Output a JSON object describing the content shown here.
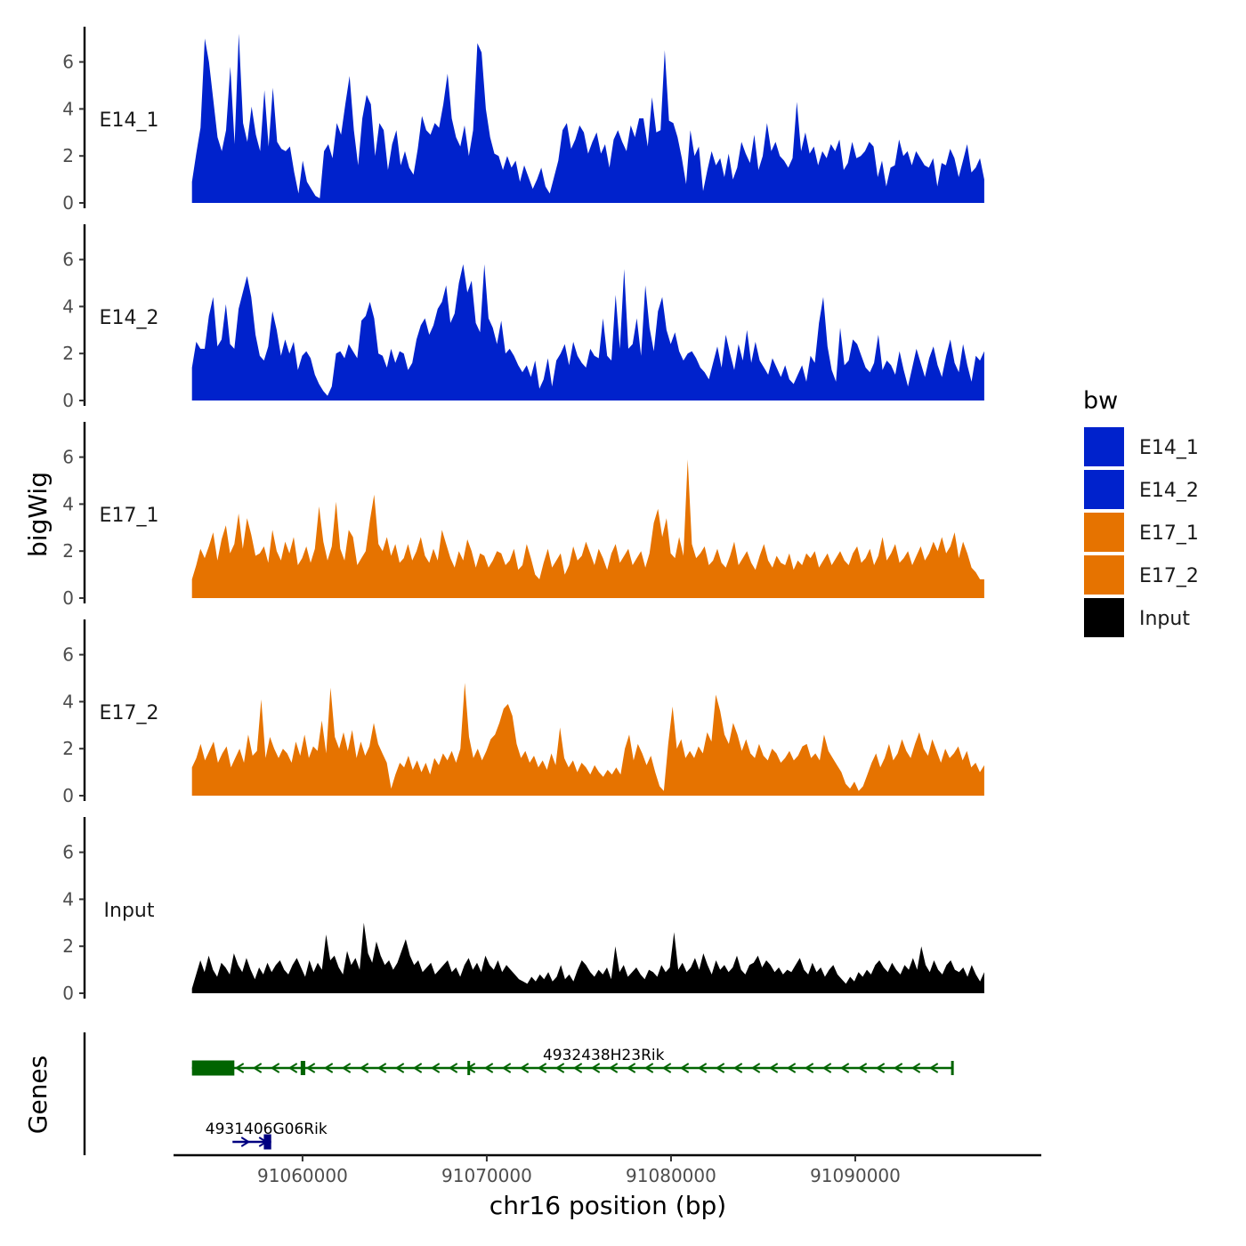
{
  "chart_data": {
    "type": "area",
    "ylabel": "bigWig",
    "genes_label": "Genes",
    "xlabel": "chr16 position (bp)",
    "xlim": [
      91053000,
      91100000
    ],
    "ylim": [
      0,
      7.5
    ],
    "y_ticks": [
      "0",
      "2",
      "4",
      "6"
    ],
    "x_ticks": [
      {
        "value": 91060000,
        "label": "91060000"
      },
      {
        "value": 91070000,
        "label": "91070000"
      },
      {
        "value": 91080000,
        "label": "91080000"
      },
      {
        "value": 91090000,
        "label": "91090000"
      }
    ],
    "series": [
      {
        "name": "E14_1",
        "color": "#0022cc",
        "x_start": 91054000,
        "x_end": 91097000,
        "values": [
          0.9,
          2.1,
          3.2,
          7.0,
          6.0,
          4.4,
          2.8,
          2.2,
          3.1,
          5.8,
          2.5,
          7.2,
          3.4,
          2.6,
          4.1,
          2.9,
          2.2,
          4.8,
          2.4,
          4.9,
          2.6,
          2.3,
          2.2,
          2.4,
          1.3,
          0.4,
          1.8,
          0.9,
          0.6,
          0.3,
          0.2,
          2.2,
          2.5,
          1.9,
          3.4,
          2.9,
          4.2,
          5.4,
          3.1,
          1.6,
          3.6,
          4.6,
          4.2,
          2.0,
          3.4,
          3.1,
          1.4,
          2.5,
          3.1,
          1.6,
          2.2,
          1.5,
          1.2,
          2.3,
          3.7,
          3.1,
          2.9,
          3.4,
          3.2,
          4.2,
          5.5,
          3.6,
          2.8,
          2.4,
          3.3,
          2.0,
          3.1,
          6.8,
          6.4,
          4.0,
          2.8,
          2.1,
          2.0,
          1.4,
          2.0,
          1.5,
          1.8,
          0.9,
          1.6,
          1.1,
          0.6,
          1.0,
          1.5,
          0.7,
          0.4,
          1.1,
          1.8,
          3.1,
          3.4,
          2.3,
          2.7,
          3.3,
          3.0,
          2.1,
          2.6,
          3.0,
          2.1,
          2.5,
          1.5,
          2.7,
          3.1,
          2.6,
          2.2,
          3.3,
          2.8,
          3.6,
          3.6,
          2.4,
          4.5,
          3.0,
          3.1,
          6.5,
          3.5,
          3.4,
          2.8,
          1.9,
          0.8,
          3.1,
          2.0,
          2.4,
          0.5,
          1.4,
          2.2,
          1.6,
          1.9,
          1.1,
          2.1,
          1.0,
          1.5,
          2.6,
          2.1,
          1.7,
          2.9,
          1.4,
          2.0,
          3.4,
          2.2,
          2.6,
          2.0,
          1.8,
          1.5,
          1.9,
          4.3,
          2.2,
          3.0,
          2.1,
          2.4,
          1.6,
          2.2,
          1.9,
          2.5,
          2.2,
          2.7,
          1.4,
          1.7,
          2.6,
          1.9,
          2.0,
          2.2,
          2.6,
          2.4,
          1.1,
          1.8,
          0.7,
          1.5,
          1.6,
          2.7,
          2.0,
          2.2,
          1.6,
          2.2,
          1.9,
          1.6,
          1.5,
          1.9,
          0.7,
          1.7,
          1.6,
          2.3,
          1.9,
          1.1,
          1.8,
          2.5,
          1.3,
          1.5,
          1.9,
          1.0
        ]
      },
      {
        "name": "E14_2",
        "color": "#0022cc",
        "x_start": 91054000,
        "x_end": 91097000,
        "values": [
          1.4,
          2.5,
          2.2,
          2.2,
          3.6,
          4.4,
          2.3,
          2.6,
          4.1,
          2.4,
          2.2,
          3.9,
          4.6,
          5.3,
          4.4,
          2.8,
          1.9,
          1.7,
          2.3,
          3.8,
          3.0,
          1.9,
          2.6,
          2.0,
          2.5,
          1.3,
          1.9,
          2.1,
          1.8,
          1.1,
          0.7,
          0.4,
          0.2,
          0.6,
          2.0,
          2.1,
          1.8,
          2.4,
          2.1,
          1.8,
          3.4,
          3.6,
          4.2,
          3.5,
          2.0,
          1.9,
          1.4,
          2.2,
          1.6,
          2.1,
          2.0,
          1.3,
          1.6,
          2.6,
          3.2,
          3.5,
          2.8,
          3.2,
          3.9,
          4.2,
          4.9,
          3.3,
          3.7,
          5.0,
          5.8,
          4.6,
          5.1,
          3.3,
          2.9,
          5.8,
          3.5,
          3.1,
          2.4,
          3.4,
          2.0,
          2.2,
          1.9,
          1.5,
          1.2,
          1.5,
          1.0,
          1.7,
          0.5,
          0.9,
          1.8,
          0.6,
          1.7,
          2.0,
          2.4,
          1.5,
          2.5,
          1.9,
          1.6,
          1.4,
          2.2,
          1.9,
          1.8,
          3.5,
          1.9,
          1.7,
          4.5,
          2.2,
          5.6,
          2.2,
          2.4,
          3.5,
          1.9,
          4.9,
          3.1,
          2.1,
          3.8,
          4.4,
          3.0,
          2.4,
          2.9,
          2.1,
          1.7,
          2.0,
          2.1,
          1.8,
          1.4,
          1.2,
          0.9,
          1.6,
          2.3,
          1.4,
          2.8,
          2.0,
          1.3,
          2.4,
          1.7,
          3.0,
          1.6,
          2.5,
          1.7,
          1.4,
          1.1,
          1.8,
          1.4,
          1.0,
          1.5,
          0.9,
          0.7,
          1.1,
          1.5,
          0.8,
          1.9,
          1.6,
          3.3,
          4.4,
          2.3,
          1.3,
          0.8,
          3.1,
          1.5,
          1.7,
          2.6,
          2.4,
          1.9,
          1.4,
          1.2,
          1.6,
          2.8,
          1.3,
          1.7,
          1.5,
          1.1,
          2.1,
          1.3,
          0.6,
          1.4,
          2.2,
          1.6,
          1.0,
          1.8,
          2.3,
          1.5,
          1.0,
          1.9,
          2.6,
          1.6,
          1.2,
          2.4,
          1.5,
          0.8,
          1.9,
          1.7,
          2.1
        ]
      },
      {
        "name": "E17_1",
        "color": "#e67300",
        "x_start": 91054000,
        "x_end": 91097000,
        "values": [
          0.8,
          1.4,
          2.1,
          1.7,
          2.2,
          2.8,
          1.6,
          2.5,
          3.1,
          1.9,
          2.3,
          3.6,
          2.1,
          3.4,
          2.7,
          1.8,
          1.9,
          2.2,
          1.5,
          2.9,
          2.0,
          1.6,
          2.4,
          1.9,
          2.6,
          1.4,
          1.7,
          2.2,
          1.5,
          2.1,
          3.9,
          2.4,
          1.6,
          2.2,
          4.1,
          2.1,
          1.6,
          2.9,
          2.6,
          1.4,
          1.7,
          2.0,
          3.3,
          4.4,
          2.3,
          2.0,
          2.6,
          1.8,
          2.3,
          1.5,
          1.7,
          2.3,
          1.6,
          2.0,
          2.6,
          1.8,
          1.5,
          2.1,
          1.6,
          2.9,
          2.3,
          1.7,
          1.3,
          2.0,
          1.6,
          2.5,
          2.0,
          1.3,
          1.9,
          1.8,
          1.3,
          1.6,
          2.0,
          1.9,
          1.4,
          1.6,
          2.1,
          1.2,
          1.4,
          2.3,
          1.7,
          1.0,
          0.8,
          1.5,
          2.1,
          1.3,
          1.6,
          1.9,
          1.0,
          1.4,
          2.2,
          1.6,
          1.8,
          2.4,
          1.9,
          1.4,
          2.1,
          1.7,
          1.2,
          1.9,
          2.3,
          1.5,
          1.8,
          2.1,
          1.4,
          1.7,
          2.0,
          1.3,
          1.9,
          3.2,
          3.8,
          2.6,
          3.4,
          1.9,
          1.7,
          2.6,
          1.8,
          5.9,
          2.3,
          1.7,
          1.9,
          2.2,
          1.4,
          1.6,
          2.1,
          1.5,
          1.3,
          1.8,
          2.4,
          1.4,
          1.7,
          2.0,
          1.5,
          1.2,
          1.8,
          2.3,
          1.6,
          1.3,
          1.8,
          1.5,
          1.4,
          1.9,
          1.2,
          1.6,
          1.4,
          1.9,
          1.7,
          2.0,
          1.3,
          1.6,
          1.9,
          1.4,
          1.7,
          2.0,
          1.6,
          1.4,
          1.9,
          2.2,
          1.5,
          1.7,
          2.1,
          1.4,
          1.8,
          2.6,
          1.6,
          1.9,
          2.3,
          1.5,
          1.7,
          2.0,
          1.4,
          1.8,
          2.2,
          1.6,
          1.9,
          2.4,
          2.0,
          2.6,
          1.9,
          2.2,
          2.8,
          1.7,
          2.4,
          1.9,
          1.3,
          1.1,
          0.8,
          0.8
        ]
      },
      {
        "name": "E17_2",
        "color": "#e67300",
        "x_start": 91054000,
        "x_end": 91097000,
        "values": [
          1.2,
          1.6,
          2.2,
          1.5,
          1.9,
          2.3,
          1.4,
          1.8,
          2.1,
          1.2,
          1.6,
          2.0,
          1.4,
          2.6,
          1.7,
          1.9,
          4.1,
          1.6,
          2.5,
          2.0,
          1.6,
          2.0,
          1.8,
          1.4,
          2.3,
          1.7,
          2.6,
          1.6,
          2.1,
          1.9,
          3.2,
          1.8,
          4.6,
          2.5,
          2.0,
          2.7,
          1.9,
          2.8,
          1.6,
          2.3,
          1.7,
          2.1,
          3.1,
          2.2,
          1.8,
          1.4,
          0.3,
          0.9,
          1.4,
          1.2,
          1.7,
          1.1,
          1.5,
          1.0,
          1.4,
          0.9,
          1.6,
          1.3,
          1.8,
          1.5,
          1.9,
          1.4,
          2.0,
          4.8,
          2.5,
          1.6,
          2.0,
          1.5,
          1.9,
          2.4,
          2.6,
          3.1,
          3.7,
          3.9,
          3.4,
          2.2,
          1.6,
          1.9,
          1.4,
          1.7,
          1.2,
          1.5,
          1.1,
          1.8,
          1.3,
          2.9,
          1.6,
          1.2,
          1.5,
          1.0,
          1.4,
          1.2,
          0.9,
          1.3,
          1.0,
          0.8,
          1.1,
          0.9,
          1.2,
          0.9,
          2.0,
          2.6,
          1.5,
          2.2,
          1.8,
          1.3,
          1.7,
          1.0,
          0.4,
          0.2,
          2.2,
          3.8,
          2.0,
          2.4,
          1.6,
          1.9,
          1.6,
          2.1,
          1.8,
          2.7,
          2.3,
          4.3,
          3.6,
          2.6,
          2.2,
          3.1,
          2.6,
          1.9,
          2.4,
          1.8,
          1.6,
          2.2,
          1.7,
          1.5,
          2.0,
          1.8,
          1.4,
          1.6,
          1.9,
          1.5,
          1.7,
          2.1,
          2.2,
          1.6,
          1.8,
          1.5,
          2.6,
          1.9,
          1.6,
          1.3,
          1.0,
          0.5,
          0.3,
          0.6,
          0.2,
          0.4,
          0.9,
          1.4,
          1.8,
          1.2,
          1.6,
          2.2,
          1.5,
          1.8,
          2.4,
          1.9,
          1.6,
          2.2,
          2.7,
          2.0,
          1.7,
          2.4,
          1.9,
          1.4,
          2.0,
          1.6,
          1.8,
          2.1,
          1.5,
          1.9,
          1.2,
          1.4,
          1.0,
          1.3
        ]
      },
      {
        "name": "Input",
        "color": "#000000",
        "x_start": 91054000,
        "x_end": 91097000,
        "values": [
          0.2,
          0.8,
          1.4,
          0.9,
          1.6,
          1.0,
          0.7,
          1.3,
          1.1,
          0.8,
          1.7,
          1.2,
          0.9,
          1.5,
          1.0,
          0.6,
          1.1,
          0.8,
          1.3,
          0.9,
          1.2,
          1.4,
          1.0,
          0.8,
          1.2,
          1.5,
          1.1,
          0.7,
          1.4,
          0.9,
          1.3,
          1.0,
          2.5,
          1.4,
          1.6,
          1.1,
          0.8,
          1.8,
          1.2,
          1.5,
          1.0,
          3.0,
          1.7,
          1.3,
          2.2,
          1.6,
          1.2,
          1.4,
          1.0,
          1.3,
          1.8,
          2.3,
          1.6,
          1.2,
          1.4,
          0.9,
          1.1,
          1.3,
          0.8,
          1.0,
          1.2,
          1.4,
          0.9,
          1.1,
          0.7,
          1.2,
          1.5,
          1.0,
          1.3,
          0.9,
          1.6,
          1.2,
          1.0,
          1.4,
          0.9,
          1.2,
          1.0,
          0.8,
          0.6,
          0.5,
          0.4,
          0.7,
          0.5,
          0.8,
          0.6,
          0.9,
          0.5,
          0.7,
          1.2,
          0.6,
          0.8,
          0.5,
          1.0,
          1.4,
          1.2,
          0.9,
          0.7,
          1.0,
          0.8,
          1.1,
          0.6,
          2.0,
          0.9,
          1.2,
          0.7,
          0.9,
          1.1,
          0.8,
          0.6,
          1.0,
          0.9,
          0.7,
          1.2,
          0.9,
          1.1,
          2.6,
          1.0,
          1.3,
          0.9,
          1.1,
          1.5,
          1.0,
          1.7,
          1.2,
          0.8,
          1.4,
          1.0,
          1.2,
          0.9,
          1.1,
          1.6,
          1.0,
          0.8,
          1.2,
          1.3,
          1.6,
          1.1,
          1.4,
          1.2,
          0.9,
          1.1,
          0.8,
          1.0,
          0.9,
          1.2,
          1.5,
          1.0,
          0.8,
          1.3,
          0.9,
          1.1,
          0.7,
          1.0,
          1.2,
          0.8,
          0.6,
          0.4,
          0.7,
          0.5,
          0.9,
          0.7,
          1.0,
          0.8,
          1.2,
          1.4,
          1.1,
          0.9,
          1.3,
          1.0,
          0.8,
          1.2,
          1.0,
          1.5,
          1.0,
          2.0,
          1.2,
          0.9,
          1.4,
          1.0,
          0.8,
          1.2,
          1.4,
          1.0,
          0.9,
          1.1,
          0.7,
          1.2,
          0.8,
          0.5,
          0.9
        ]
      }
    ],
    "genes": [
      {
        "name": "4932438H23Rik",
        "color": "#006400",
        "strand": "-",
        "start": 91054000,
        "end": 91095300,
        "exons": [
          [
            91054000,
            91056300
          ],
          [
            91059900,
            91060150
          ],
          [
            91068950,
            91069050
          ],
          [
            91095200,
            91095300
          ]
        ]
      },
      {
        "name": "4931406G06Rik",
        "color": "#000080",
        "strand": "+",
        "start": 91056200,
        "end": 91058300,
        "exons": [
          [
            91057900,
            91058300
          ]
        ]
      }
    ],
    "legend": {
      "title": "bw",
      "entries": [
        {
          "label": "E14_1",
          "color": "#0022cc"
        },
        {
          "label": "E14_2",
          "color": "#0022cc"
        },
        {
          "label": "E17_1",
          "color": "#e67300"
        },
        {
          "label": "E17_2",
          "color": "#e67300"
        },
        {
          "label": "Input",
          "color": "#000000"
        }
      ]
    }
  }
}
